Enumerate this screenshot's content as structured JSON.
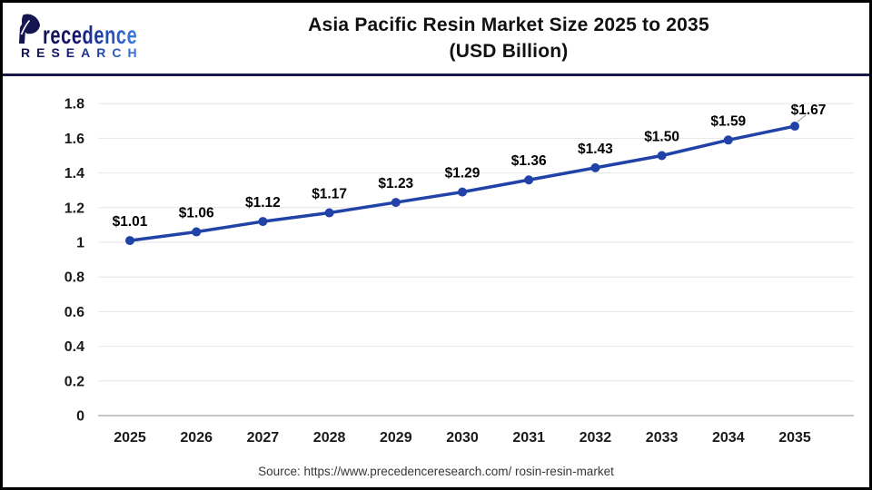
{
  "logo": {
    "brand": "Precedence",
    "brand_rest": "recedence",
    "sub": "RESEARCH"
  },
  "title": {
    "line1": "Asia Pacific Resin Market Size 2025 to 2035",
    "line2": "(USD Billion)"
  },
  "source": "Source: https://www.precedenceresearch.com/ rosin-resin-market",
  "colors": {
    "line": "#2143a7",
    "marker": "#2143a7",
    "grid": "#e6e6e6",
    "axis_line": "#b3b3b3",
    "divider": "#18184a",
    "title_text": "#111111",
    "label_text": "#000000",
    "leader": "#999999",
    "logo_navy": "#141450",
    "logo_blue": "#3f7ee2"
  },
  "chart_data": {
    "type": "line",
    "title": "Asia Pacific Resin Market Size 2025 to 2035 (USD Billion)",
    "categories": [
      "2025",
      "2026",
      "2027",
      "2028",
      "2029",
      "2030",
      "2031",
      "2032",
      "2033",
      "2034",
      "2035"
    ],
    "values": [
      1.01,
      1.06,
      1.12,
      1.17,
      1.23,
      1.29,
      1.36,
      1.43,
      1.5,
      1.59,
      1.67
    ],
    "labels": [
      "$1.01",
      "$1.06",
      "$1.12",
      "$1.17",
      "$1.23",
      "$1.29",
      "$1.36",
      "$1.43",
      "$1.50",
      "$1.59",
      "$1.67"
    ],
    "ylim": [
      0,
      1.8
    ],
    "ytick_step": 0.2,
    "grid": true,
    "legend": false
  }
}
